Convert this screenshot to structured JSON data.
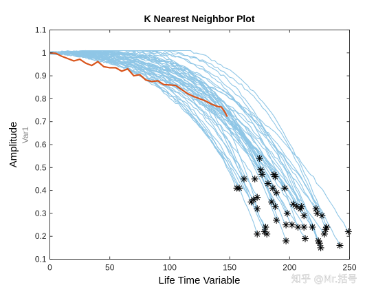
{
  "chart_data": {
    "type": "line",
    "title": "K Nearest Neighbor Plot",
    "xlabel": "Life Time Variable",
    "ylabel": "Amplitude",
    "ylabel_secondary": "Var1",
    "xlim": [
      0,
      250
    ],
    "ylim": [
      0.1,
      1.1
    ],
    "x_ticks": [
      0,
      50,
      100,
      150,
      200,
      250
    ],
    "y_ticks": [
      0.1,
      0.2,
      0.3,
      0.4,
      0.5,
      0.6,
      0.7,
      0.8,
      0.9,
      1,
      1.1
    ],
    "x_tick_labels": [
      "0",
      "50",
      "100",
      "150",
      "200",
      "250"
    ],
    "y_tick_labels": [
      "0.1",
      "0.2",
      "0.3",
      "0.4",
      "0.5",
      "0.6",
      "0.7",
      "0.8",
      "0.9",
      "1",
      "1.1"
    ],
    "grid": false,
    "colors": {
      "neighbor_lines": "#8fc6e6",
      "test_line": "#d95319",
      "end_markers": "#000000"
    },
    "series": [
      {
        "role": "nearest-neighbor-trajectories",
        "end_points": [
          [
            156,
            0.41
          ],
          [
            158,
            0.41
          ],
          [
            162,
            0.45
          ],
          [
            168,
            0.35
          ],
          [
            170,
            0.36
          ],
          [
            171,
            0.45
          ],
          [
            173,
            0.37
          ],
          [
            173,
            0.32
          ],
          [
            173,
            0.21
          ],
          [
            175,
            0.54
          ],
          [
            176,
            0.49
          ],
          [
            177,
            0.47
          ],
          [
            179,
            0.22
          ],
          [
            180,
            0.24
          ],
          [
            181,
            0.21
          ],
          [
            182,
            0.43
          ],
          [
            185,
            0.35
          ],
          [
            186,
            0.41
          ],
          [
            187,
            0.47
          ],
          [
            188,
            0.46
          ],
          [
            188,
            0.33
          ],
          [
            189,
            0.39
          ],
          [
            189,
            0.27
          ],
          [
            196,
            0.41
          ],
          [
            197,
            0.25
          ],
          [
            197,
            0.18
          ],
          [
            198,
            0.3
          ],
          [
            202,
            0.25
          ],
          [
            203,
            0.34
          ],
          [
            206,
            0.33
          ],
          [
            207,
            0.24
          ],
          [
            209,
            0.32
          ],
          [
            210,
            0.33
          ],
          [
            212,
            0.29
          ],
          [
            212,
            0.24
          ],
          [
            213,
            0.19
          ],
          [
            219,
            0.24
          ],
          [
            222,
            0.32
          ],
          [
            223,
            0.3
          ],
          [
            224,
            0.18
          ],
          [
            225,
            0.17
          ],
          [
            226,
            0.15
          ],
          [
            227,
            0.29
          ],
          [
            229,
            0.21
          ],
          [
            230,
            0.23
          ],
          [
            231,
            0.24
          ],
          [
            242,
            0.16
          ],
          [
            249,
            0.22
          ]
        ]
      },
      {
        "role": "test-trajectory",
        "x": [
          0,
          5,
          10,
          15,
          20,
          25,
          30,
          35,
          40,
          45,
          50,
          55,
          60,
          65,
          70,
          75,
          80,
          85,
          90,
          95,
          100,
          105,
          110,
          115,
          120,
          125,
          130,
          135,
          140,
          143,
          146,
          148
        ],
        "y": [
          1.0,
          0.998,
          0.985,
          0.975,
          0.965,
          0.972,
          0.955,
          0.945,
          0.962,
          0.94,
          0.935,
          0.935,
          0.92,
          0.93,
          0.9,
          0.905,
          0.882,
          0.875,
          0.878,
          0.862,
          0.86,
          0.858,
          0.84,
          0.822,
          0.81,
          0.8,
          0.79,
          0.776,
          0.766,
          0.764,
          0.742,
          0.722
        ]
      }
    ]
  },
  "watermark": "知乎 @Mr.括号"
}
